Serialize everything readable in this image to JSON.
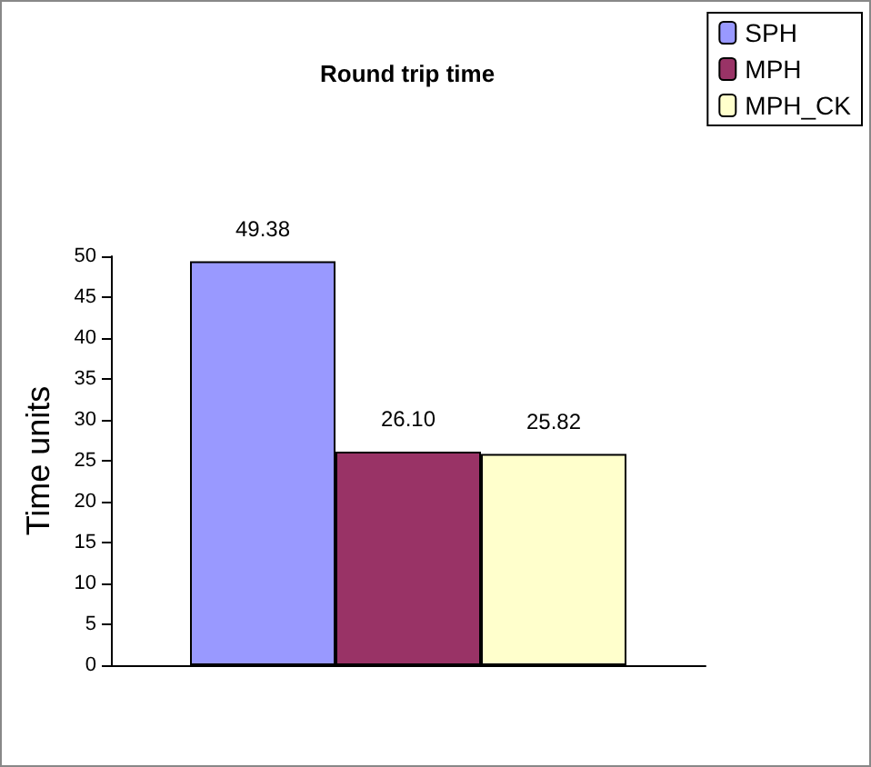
{
  "chart_data": {
    "type": "bar",
    "title": "Round trip time",
    "ylabel": "Time units",
    "categories": [
      null
    ],
    "series": [
      {
        "name": "SPH",
        "color": "#9999ff",
        "values": [
          49.38
        ],
        "value_labels": [
          "49.38"
        ]
      },
      {
        "name": "MPH",
        "color": "#993366",
        "values": [
          26.1
        ],
        "value_labels": [
          "26.10"
        ]
      },
      {
        "name": "MPH_CK",
        "color": "#ffffcc",
        "values": [
          25.82
        ],
        "value_labels": [
          "25.82"
        ]
      }
    ],
    "ylim": [
      0,
      50
    ],
    "yticks": [
      0,
      5,
      10,
      15,
      20,
      25,
      30,
      35,
      40,
      45,
      50
    ],
    "grid": false,
    "legend": "top right"
  }
}
